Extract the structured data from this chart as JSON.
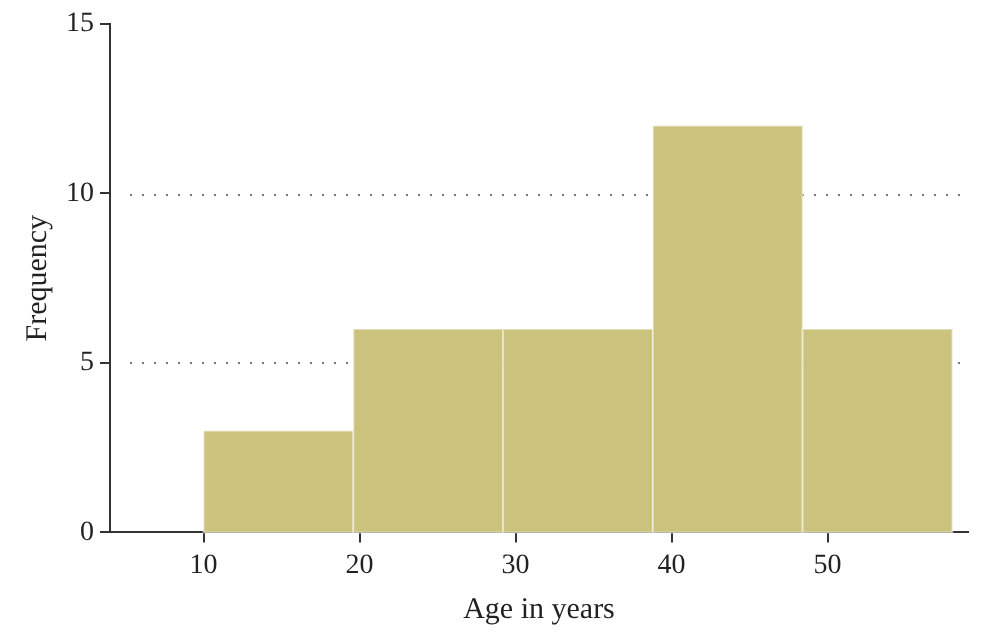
{
  "chart_data": {
    "type": "histogram",
    "xlabel": "Age in years",
    "ylabel": "Frequency",
    "bins": [
      10,
      19.6,
      29.2,
      38.8,
      48.4,
      58
    ],
    "values": [
      3,
      6,
      6,
      12,
      6
    ],
    "color": "#cbc27e",
    "xlim": [
      4,
      59
    ],
    "xticks": [
      10,
      20,
      30,
      40,
      50
    ],
    "ylim": [
      0,
      15
    ],
    "yticks": [
      0,
      5,
      10,
      15
    ],
    "grid": "y",
    "legend": false
  }
}
